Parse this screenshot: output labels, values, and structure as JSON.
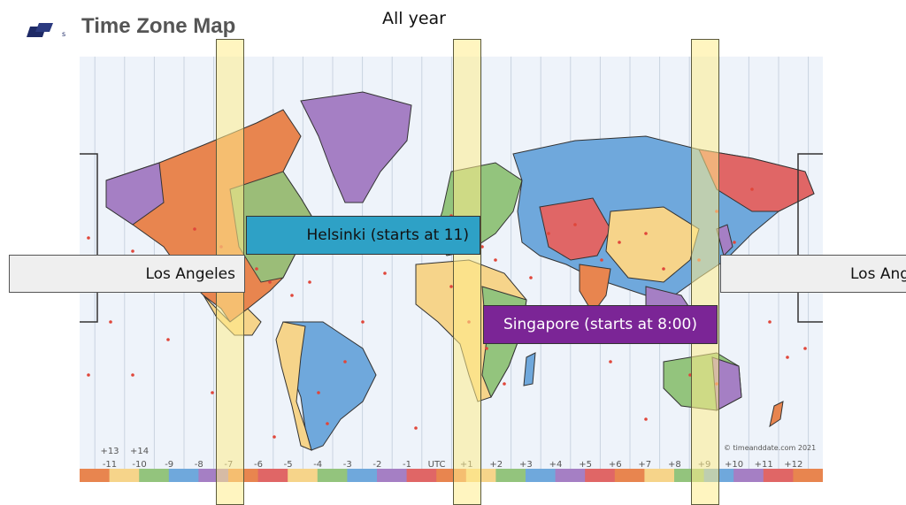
{
  "header": {
    "title": "Time Zone Map",
    "top_label": "All year"
  },
  "callouts": {
    "los_angeles_left": "Los Angeles",
    "los_angeles_right": "Los Ang",
    "helsinki": "Helsinki (starts at 11)",
    "singapore": "Singapore (starts at 8:00)"
  },
  "map": {
    "copyright": "© timeanddate.com 2021",
    "upper_offsets": [
      "+13",
      "+14"
    ],
    "offset_labels": [
      "-11",
      "-10",
      "-9",
      "-8",
      "-7",
      "-6",
      "-5",
      "-4",
      "-3",
      "-2",
      "-1",
      "UTC",
      "+1",
      "+2",
      "+3",
      "+4",
      "+5",
      "+6",
      "+7",
      "+8",
      "+9",
      "+10",
      "+11",
      "+12"
    ],
    "scale_colors": [
      "#e8854f",
      "#f6d48a",
      "#93c47d",
      "#6fa8dc",
      "#a57fc4",
      "#e8854f",
      "#e06666",
      "#f6d48a",
      "#93c47d",
      "#6fa8dc",
      "#a57fc4",
      "#e06666",
      "#e8854f",
      "#f6d48a",
      "#93c47d",
      "#6fa8dc",
      "#a57fc4",
      "#e06666",
      "#e8854f",
      "#f6d48a",
      "#93c47d",
      "#6fa8dc",
      "#a57fc4",
      "#e06666",
      "#e8854f"
    ],
    "highlighted_offsets": [
      "-7",
      "+1",
      "+9"
    ]
  },
  "colors": {
    "highlight_band": "#ffec8c",
    "helsinki_box": "#2ea1c6",
    "singapore_box": "#7b2596",
    "los_angeles_box": "#efefef"
  }
}
